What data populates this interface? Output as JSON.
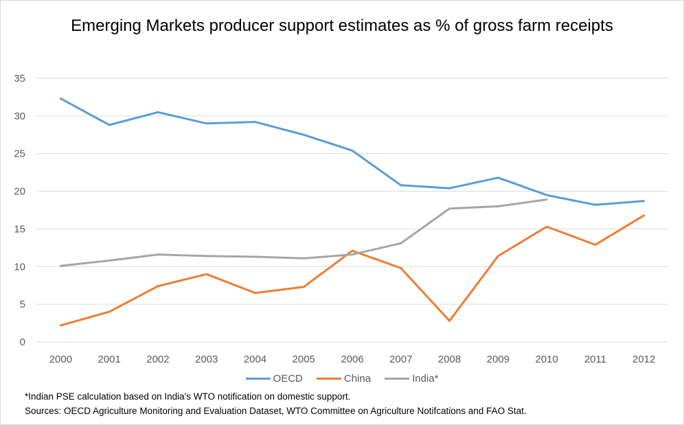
{
  "chart_data": {
    "type": "line",
    "title": "Emerging Markets producer support estimates as % of gross farm receipts",
    "x": [
      "2000",
      "2001",
      "2002",
      "2003",
      "2004",
      "2005",
      "2006",
      "2007",
      "2008",
      "2009",
      "2010",
      "2011",
      "2012"
    ],
    "ylim": [
      0,
      35
    ],
    "yticks": [
      0,
      5,
      10,
      15,
      20,
      25,
      30,
      35
    ],
    "grid": true,
    "legend_position": "bottom",
    "series": [
      {
        "name": "OECD",
        "color": "#5b9bd5",
        "values": [
          32.3,
          28.8,
          30.5,
          29.0,
          29.2,
          27.5,
          25.4,
          20.8,
          20.4,
          21.8,
          19.5,
          18.2,
          18.7
        ]
      },
      {
        "name": "China",
        "color": "#ed7d31",
        "values": [
          2.2,
          4.0,
          7.4,
          9.0,
          6.5,
          7.3,
          12.1,
          9.8,
          2.8,
          11.4,
          15.3,
          12.9,
          16.8
        ]
      },
      {
        "name": "India*",
        "color": "#a5a5a5",
        "values": [
          10.1,
          10.8,
          11.6,
          11.4,
          11.3,
          11.1,
          11.6,
          13.1,
          17.7,
          18.0,
          18.9,
          null,
          null
        ]
      }
    ]
  },
  "footnotes": {
    "note": "*Indian PSE calculation based on India's WTO notification on domestic support.",
    "sources": "Sources: OECD Agriculture Monitoring and Evaluation Dataset, WTO Committee on Agriculture Notifcations and FAO Stat."
  },
  "colors": {
    "gridline": "#d9d9d9",
    "axis_text": "#595959"
  }
}
